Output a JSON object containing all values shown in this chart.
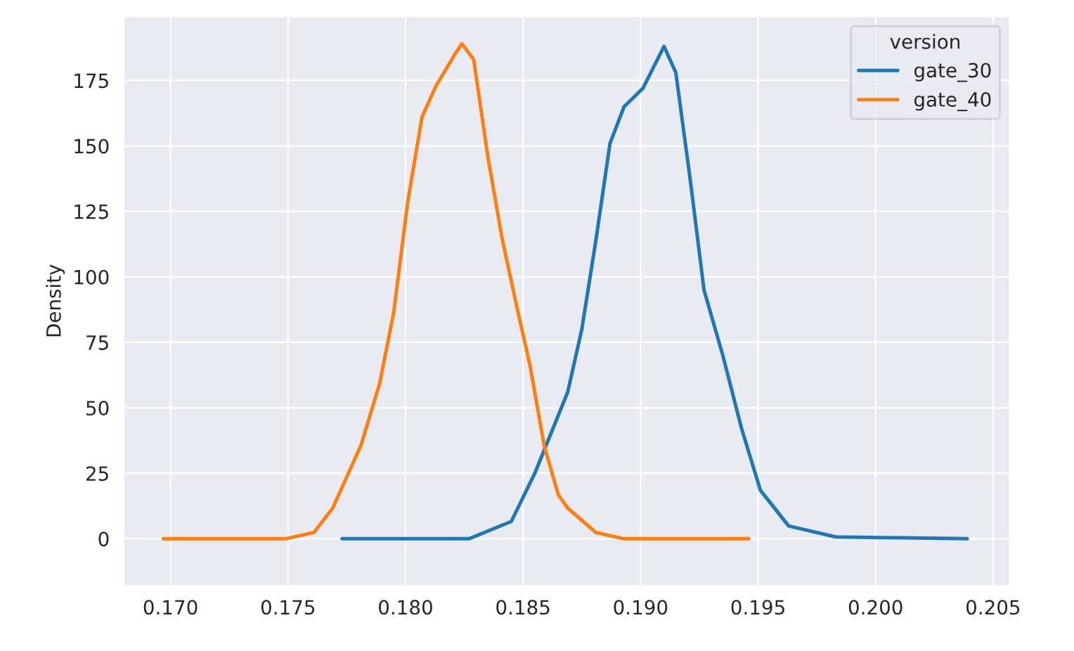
{
  "chart_data": {
    "type": "line",
    "ylabel": "Density",
    "legend_title": "version",
    "legend": "top right",
    "grid": true,
    "xlim": [
      0.168,
      0.2057
    ],
    "ylim": [
      -18,
      199.5
    ],
    "xticks": [
      {
        "value": 0.17,
        "label": "0.170"
      },
      {
        "value": 0.175,
        "label": "0.175"
      },
      {
        "value": 0.18,
        "label": "0.180"
      },
      {
        "value": 0.185,
        "label": "0.185"
      },
      {
        "value": 0.19,
        "label": "0.190"
      },
      {
        "value": 0.195,
        "label": "0.195"
      },
      {
        "value": 0.2,
        "label": "0.200"
      },
      {
        "value": 0.205,
        "label": "0.205"
      }
    ],
    "yticks": [
      0,
      25,
      50,
      75,
      100,
      125,
      150,
      175
    ],
    "series": [
      {
        "name": "gate_30",
        "color": "#1f77b4",
        "x": [
          0.1773,
          0.1827,
          0.1845,
          0.1855,
          0.1869,
          0.1875,
          0.1881,
          0.1887,
          0.1893,
          0.1901,
          0.191,
          0.1915,
          0.1921,
          0.1927,
          0.1935,
          0.1943,
          0.1951,
          0.1963,
          0.1983,
          0.2039
        ],
        "values": [
          0,
          0,
          6.6,
          25,
          56,
          80,
          114,
          151,
          165,
          172,
          188,
          178,
          138,
          95,
          70,
          42,
          18.5,
          4.9,
          0.7,
          0
        ]
      },
      {
        "name": "gate_40",
        "color": "#ff7f0e",
        "x": [
          0.1697,
          0.1749,
          0.1761,
          0.1769,
          0.1781,
          0.1789,
          0.1795,
          0.1801,
          0.1807,
          0.1813,
          0.1821,
          0.1824,
          0.1829,
          0.1835,
          0.1841,
          0.1847,
          0.1853,
          0.1859,
          0.1865,
          0.1869,
          0.1881,
          0.1893,
          0.1946
        ],
        "values": [
          0,
          0,
          2.4,
          11.7,
          35.6,
          59.3,
          86.6,
          129,
          161,
          173,
          185,
          189,
          183,
          146,
          115,
          90,
          66,
          35.5,
          16.8,
          11.7,
          2.4,
          0,
          0
        ]
      }
    ]
  }
}
